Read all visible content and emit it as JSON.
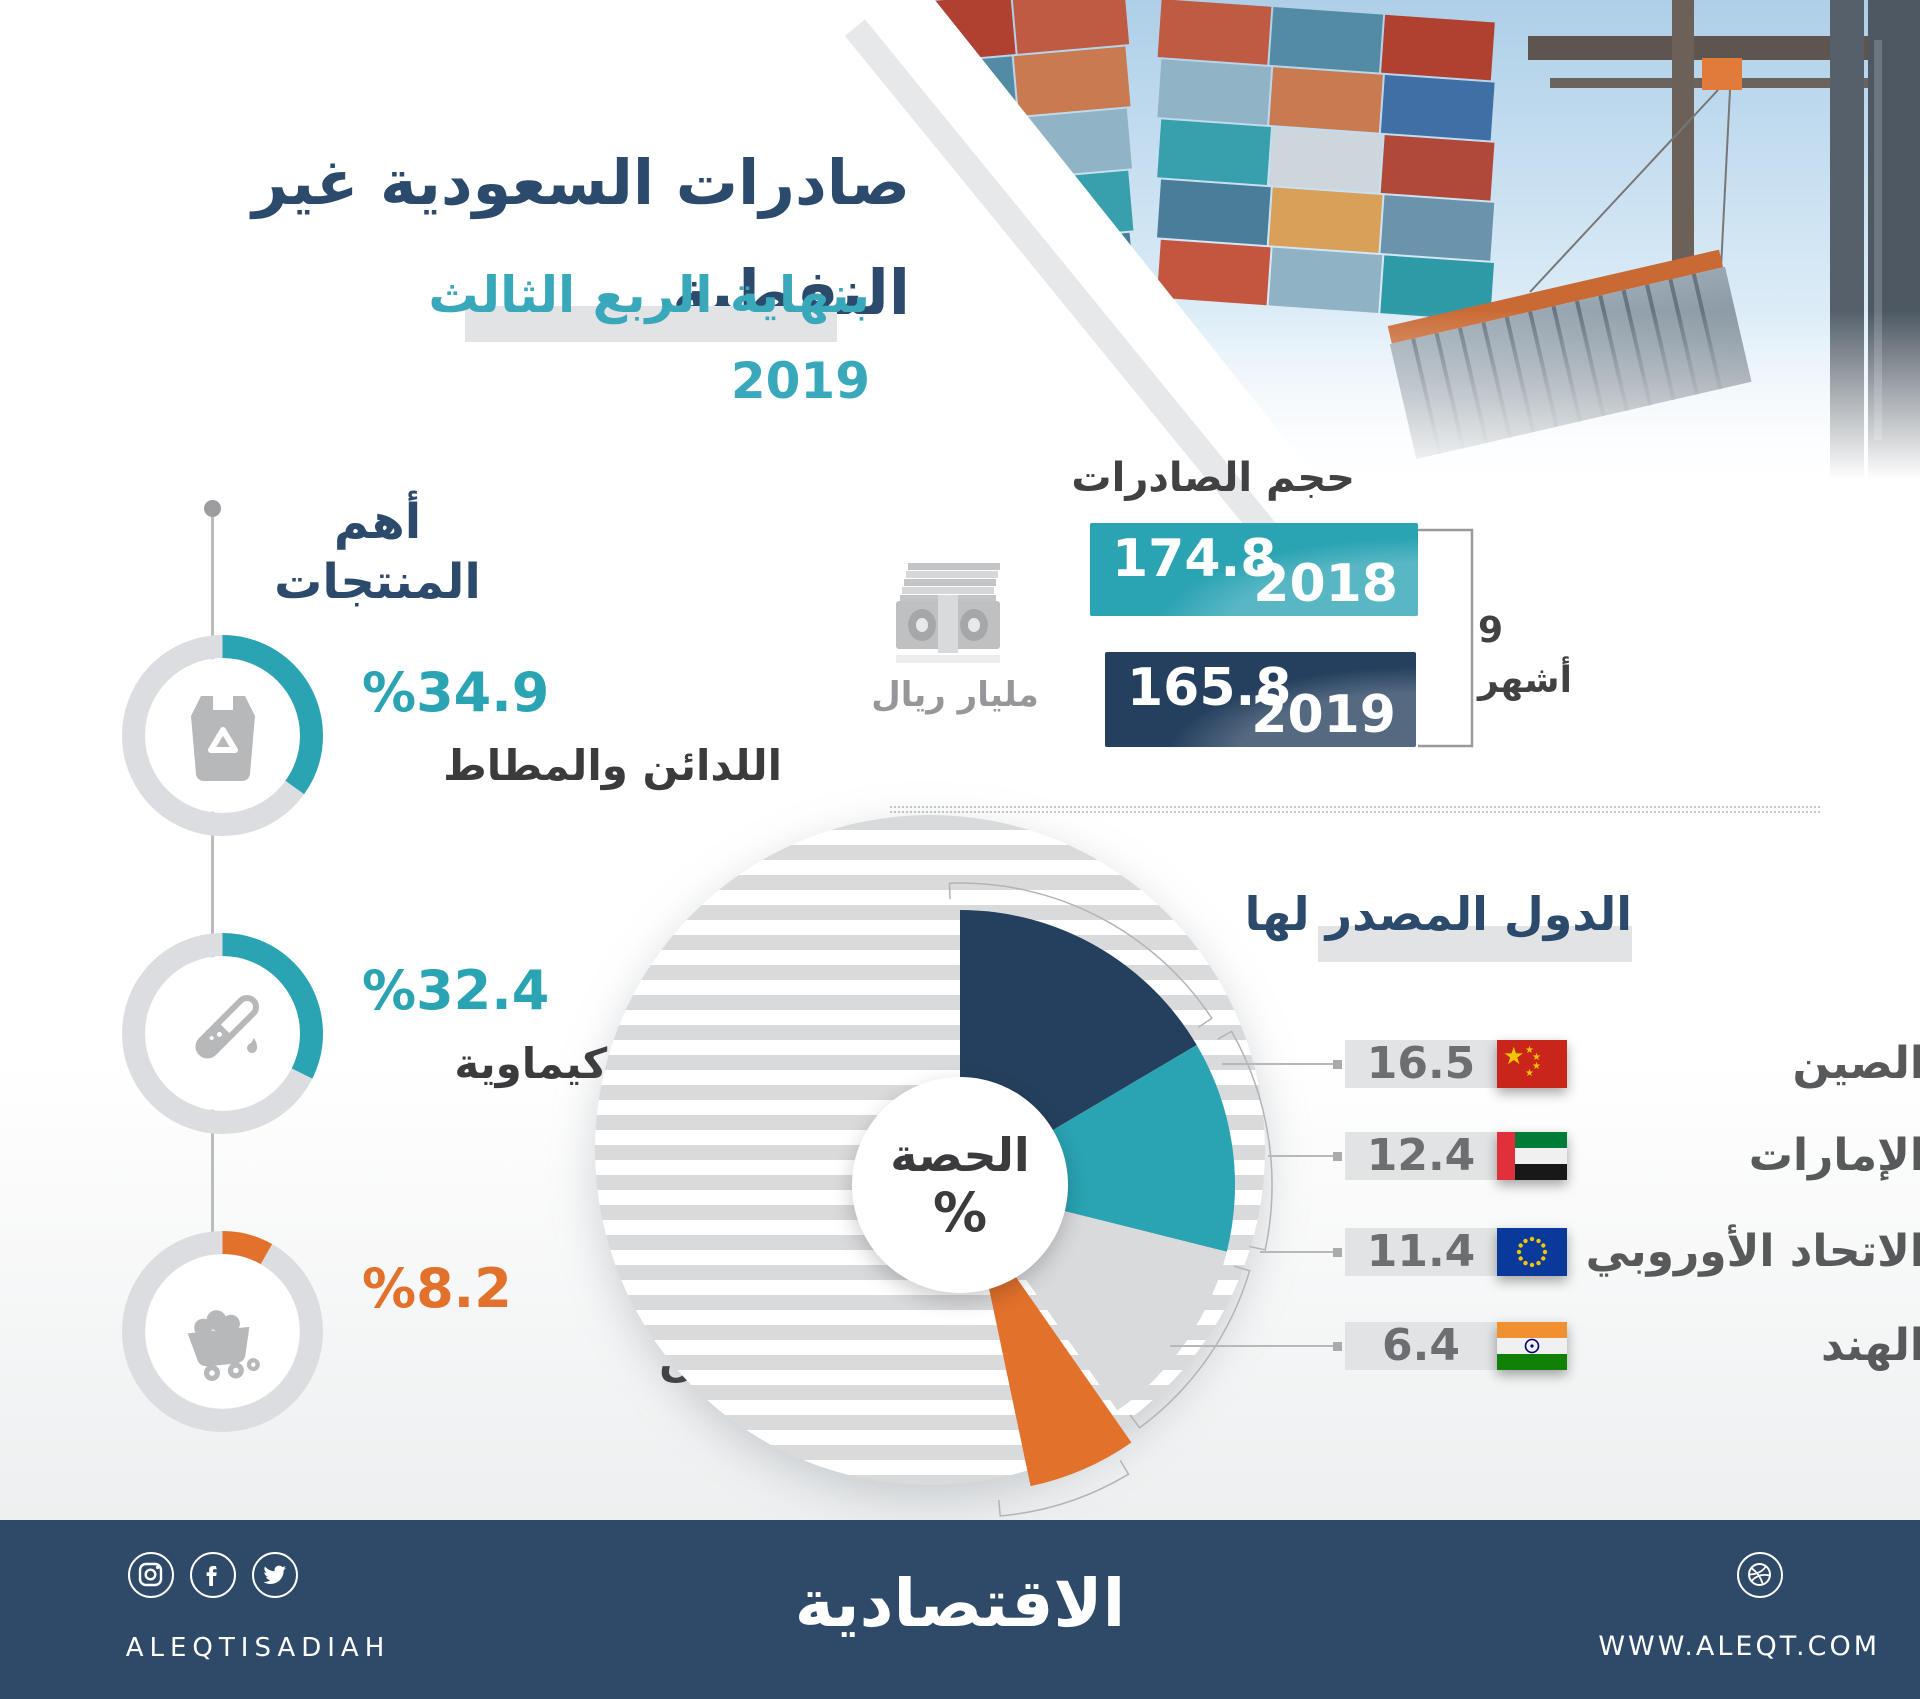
{
  "header": {
    "title": "صادرات السعودية غير النفطية",
    "subtitle": "بنهاية الربع الثالث 2019"
  },
  "exports_volume": {
    "title": "حجم الصادرات",
    "period_label": "9 أشهر",
    "unit_label": "مليار ريال",
    "unit_icon": "money-stack-icon",
    "bars": [
      {
        "year": "2018",
        "value": "174.8"
      },
      {
        "year": "2019",
        "value": "165.8"
      }
    ]
  },
  "top_products": {
    "title": "أهم المنتجات",
    "items": [
      {
        "percent": "%34.9",
        "label": "اللدائن والمطاط",
        "icon": "plastic-bag-recycle-icon"
      },
      {
        "percent": "%32.4",
        "label": "صناعات كيماوية",
        "icon": "test-tube-icon"
      },
      {
        "percent": "%8.2",
        "label": "معادن",
        "icon": "mine-cart-icon"
      }
    ]
  },
  "destinations": {
    "title": "الدول المصدر لها",
    "center_label": "الحصة",
    "center_symbol": "%",
    "items": [
      {
        "value": "16.5",
        "label": "الصين",
        "flag": "china-flag"
      },
      {
        "value": "12.4",
        "label": "الإمارات",
        "flag": "uae-flag"
      },
      {
        "value": "11.4",
        "label": "الاتحاد الأوروبي",
        "flag": "eu-flag"
      },
      {
        "value": "6.4",
        "label": "الهند",
        "flag": "india-flag"
      }
    ]
  },
  "footer": {
    "handle": "ALEQTISADIAH",
    "brand": "الاقتصادية",
    "website": "WWW.ALEQT.COM",
    "icons": [
      "instagram-icon",
      "facebook-icon",
      "twitter-icon",
      "dribbble-icon"
    ]
  },
  "colors": {
    "navy_title": "#2c4a6b",
    "teal": "#2aa3b3",
    "bar_navy": "#25405e",
    "orange": "#e2712b",
    "ring_gray": "#dcdde0",
    "text_dark": "#3b3b3d",
    "value_gray": "#6d6e71",
    "footer_navy": "#2e4a68"
  },
  "chart_data": [
    {
      "type": "bar",
      "title": "حجم الصادرات",
      "orientation": "horizontal",
      "categories": [
        "2018",
        "2019"
      ],
      "values": [
        174.8,
        165.8
      ],
      "unit": "مليار ريال",
      "annotation": "9 أشهر",
      "colors": [
        "#2aa3b3",
        "#25405e"
      ]
    },
    {
      "type": "pie",
      "title": "الدول المصدر لها",
      "center_label": "الحصة %",
      "categories": [
        "الصين",
        "الإمارات",
        "الاتحاد الأوروبي",
        "الهند"
      ],
      "values": [
        16.5,
        12.4,
        11.4,
        6.4
      ],
      "unit": "%",
      "colors": [
        "#25405e",
        "#2aa3b3",
        "#d9dadc",
        "#e2712b"
      ],
      "note": "slices sized as percent of full circle; remainder drawn as striped gray circle; India slice exploded"
    },
    {
      "type": "bar",
      "style": "radial-progress",
      "title": "أهم المنتجات",
      "categories": [
        "اللدائن والمطاط",
        "صناعات كيماوية",
        "معادن"
      ],
      "values": [
        34.9,
        32.4,
        8.2
      ],
      "unit": "%",
      "colors": [
        "#2aa3b3",
        "#2aa3b3",
        "#e2712b"
      ]
    }
  ]
}
